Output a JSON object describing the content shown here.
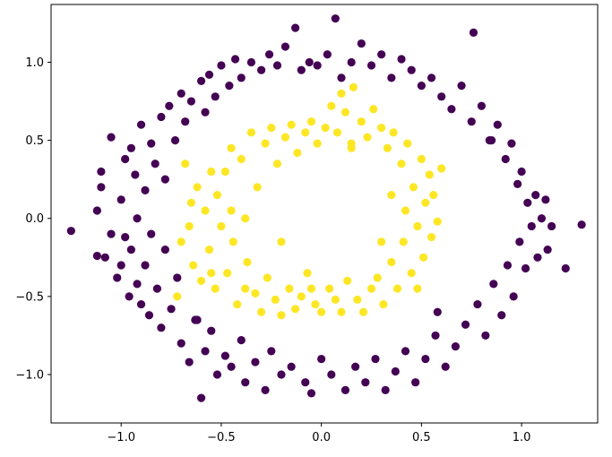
{
  "chart_data": {
    "type": "scatter",
    "title": "",
    "xlabel": "",
    "ylabel": "",
    "xlim": [
      -1.35,
      1.38
    ],
    "ylim": [
      -1.31,
      1.37
    ],
    "xticks": [
      -1.0,
      -0.5,
      0.0,
      0.5,
      1.0
    ],
    "xtick_labels": [
      "−1.0",
      "−0.5",
      "0.0",
      "0.5",
      "1.0"
    ],
    "yticks": [
      -1.0,
      -0.5,
      0.0,
      0.5,
      1.0
    ],
    "ytick_labels": [
      "−1.0",
      "−0.5",
      "0.0",
      "0.5",
      "1.0"
    ],
    "grid": false,
    "legend": "none",
    "series": [
      {
        "color": "#440154",
        "points": [
          [
            -1.25,
            -0.08
          ],
          [
            -1.1,
            0.3
          ],
          [
            -1.1,
            0.2
          ],
          [
            -1.12,
            0.05
          ],
          [
            -1.12,
            -0.24
          ],
          [
            -1.08,
            -0.25
          ],
          [
            -1.05,
            0.52
          ],
          [
            -1.05,
            -0.1
          ],
          [
            -1.02,
            -0.38
          ],
          [
            -1.0,
            0.12
          ],
          [
            -1.0,
            -0.3
          ],
          [
            -0.98,
            0.38
          ],
          [
            -0.98,
            -0.12
          ],
          [
            -0.96,
            -0.5
          ],
          [
            -0.95,
            0.45
          ],
          [
            -0.95,
            -0.2
          ],
          [
            -0.93,
            0.28
          ],
          [
            -0.92,
            -0.42
          ],
          [
            -0.92,
            0.0
          ],
          [
            -0.9,
            0.6
          ],
          [
            -0.9,
            -0.55
          ],
          [
            -0.88,
            0.18
          ],
          [
            -0.88,
            -0.3
          ],
          [
            -0.86,
            -0.62
          ],
          [
            -0.85,
            0.48
          ],
          [
            -0.85,
            -0.1
          ],
          [
            -0.83,
            0.35
          ],
          [
            -0.82,
            -0.45
          ],
          [
            -0.8,
            0.65
          ],
          [
            -0.8,
            -0.7
          ],
          [
            -0.78,
            0.25
          ],
          [
            -0.78,
            -0.2
          ],
          [
            -0.76,
            0.72
          ],
          [
            -0.75,
            -0.58
          ],
          [
            -0.73,
            0.5
          ],
          [
            -0.72,
            -0.38
          ],
          [
            -0.7,
            0.8
          ],
          [
            -0.7,
            -0.8
          ],
          [
            -0.68,
            0.62
          ],
          [
            -0.66,
            -0.92
          ],
          [
            -0.65,
            0.75
          ],
          [
            -0.63,
            -0.65
          ],
          [
            -0.6,
            0.88
          ],
          [
            -0.6,
            -1.15
          ],
          [
            -0.58,
            -0.85
          ],
          [
            -0.56,
            0.92
          ],
          [
            -0.55,
            -0.72
          ],
          [
            -0.53,
            0.78
          ],
          [
            -0.52,
            -1.0
          ],
          [
            -0.5,
            0.98
          ],
          [
            -0.48,
            -0.88
          ],
          [
            -0.46,
            0.85
          ],
          [
            -0.45,
            -0.95
          ],
          [
            -0.43,
            1.02
          ],
          [
            -0.4,
            -0.78
          ],
          [
            -0.4,
            0.9
          ],
          [
            -0.38,
            -1.05
          ],
          [
            -0.35,
            1.0
          ],
          [
            -0.33,
            -0.92
          ],
          [
            -0.3,
            0.95
          ],
          [
            -0.28,
            -1.1
          ],
          [
            -0.26,
            1.05
          ],
          [
            -0.25,
            -0.85
          ],
          [
            -0.22,
            0.98
          ],
          [
            -0.2,
            -1.0
          ],
          [
            -0.18,
            1.1
          ],
          [
            -0.15,
            -0.95
          ],
          [
            -0.13,
            1.22
          ],
          [
            -0.1,
            0.95
          ],
          [
            -0.08,
            -1.05
          ],
          [
            -0.06,
            1.0
          ],
          [
            -0.05,
            -1.12
          ],
          [
            -0.02,
            0.98
          ],
          [
            0.0,
            -0.9
          ],
          [
            0.03,
            1.05
          ],
          [
            0.05,
            -1.0
          ],
          [
            0.07,
            1.28
          ],
          [
            0.1,
            0.9
          ],
          [
            0.12,
            -1.1
          ],
          [
            0.15,
            1.0
          ],
          [
            0.17,
            -0.95
          ],
          [
            0.2,
            1.12
          ],
          [
            0.22,
            -1.05
          ],
          [
            0.25,
            0.98
          ],
          [
            0.27,
            -0.9
          ],
          [
            0.3,
            1.05
          ],
          [
            0.32,
            -1.1
          ],
          [
            0.35,
            0.9
          ],
          [
            0.37,
            -0.98
          ],
          [
            0.4,
            1.02
          ],
          [
            0.42,
            -0.85
          ],
          [
            0.45,
            0.95
          ],
          [
            0.47,
            -1.05
          ],
          [
            0.5,
            0.85
          ],
          [
            0.52,
            -0.9
          ],
          [
            0.55,
            0.9
          ],
          [
            0.57,
            -0.75
          ],
          [
            0.6,
            0.78
          ],
          [
            0.62,
            -0.95
          ],
          [
            0.65,
            0.7
          ],
          [
            0.67,
            -0.82
          ],
          [
            0.7,
            0.85
          ],
          [
            0.72,
            -0.68
          ],
          [
            0.75,
            0.62
          ],
          [
            0.76,
            1.19
          ],
          [
            0.78,
            -0.55
          ],
          [
            0.8,
            0.72
          ],
          [
            0.82,
            -0.75
          ],
          [
            0.85,
            0.5
          ],
          [
            0.86,
            -0.42
          ],
          [
            0.88,
            0.6
          ],
          [
            0.9,
            -0.62
          ],
          [
            0.92,
            0.38
          ],
          [
            0.93,
            -0.3
          ],
          [
            0.95,
            0.48
          ],
          [
            0.96,
            -0.5
          ],
          [
            0.98,
            0.22
          ],
          [
            0.99,
            -0.15
          ],
          [
            1.0,
            0.3
          ],
          [
            1.02,
            -0.32
          ],
          [
            1.03,
            0.1
          ],
          [
            1.05,
            -0.05
          ],
          [
            1.07,
            0.15
          ],
          [
            1.08,
            -0.25
          ],
          [
            1.1,
            0.0
          ],
          [
            1.12,
            0.12
          ],
          [
            1.13,
            -0.2
          ],
          [
            1.15,
            -0.05
          ],
          [
            1.22,
            -0.32
          ],
          [
            1.3,
            -0.04
          ],
          [
            0.84,
            0.5
          ],
          [
            -0.62,
            -0.65
          ],
          [
            0.58,
            -0.6
          ],
          [
            -0.58,
            0.68
          ]
        ]
      },
      {
        "color": "#fde725",
        "points": [
          [
            -0.72,
            -0.5
          ],
          [
            -0.7,
            -0.15
          ],
          [
            -0.68,
            0.35
          ],
          [
            -0.66,
            -0.05
          ],
          [
            -0.65,
            0.1
          ],
          [
            -0.64,
            -0.3
          ],
          [
            -0.62,
            0.2
          ],
          [
            -0.6,
            -0.4
          ],
          [
            -0.58,
            0.05
          ],
          [
            -0.56,
            -0.2
          ],
          [
            -0.55,
            0.3
          ],
          [
            -0.53,
            -0.45
          ],
          [
            -0.52,
            0.15
          ],
          [
            -0.5,
            -0.05
          ],
          [
            -0.48,
            0.3
          ],
          [
            -0.47,
            -0.35
          ],
          [
            -0.45,
            0.45
          ],
          [
            -0.44,
            -0.15
          ],
          [
            -0.42,
            -0.55
          ],
          [
            -0.4,
            0.38
          ],
          [
            -0.38,
            0.0
          ],
          [
            -0.37,
            -0.28
          ],
          [
            -0.35,
            0.55
          ],
          [
            -0.33,
            -0.48
          ],
          [
            -0.32,
            0.2
          ],
          [
            -0.3,
            -0.6
          ],
          [
            -0.28,
            0.48
          ],
          [
            -0.27,
            -0.38
          ],
          [
            -0.25,
            0.58
          ],
          [
            -0.23,
            -0.52
          ],
          [
            -0.22,
            0.35
          ],
          [
            -0.2,
            -0.62
          ],
          [
            -0.18,
            0.52
          ],
          [
            -0.16,
            -0.45
          ],
          [
            -0.15,
            0.6
          ],
          [
            -0.13,
            -0.58
          ],
          [
            -0.12,
            0.42
          ],
          [
            -0.1,
            -0.5
          ],
          [
            -0.08,
            0.55
          ],
          [
            -0.07,
            -0.35
          ],
          [
            -0.05,
            0.62
          ],
          [
            -0.03,
            -0.55
          ],
          [
            -0.02,
            0.48
          ],
          [
            0.0,
            -0.6
          ],
          [
            0.02,
            0.58
          ],
          [
            0.04,
            -0.45
          ],
          [
            0.05,
            0.72
          ],
          [
            0.07,
            -0.52
          ],
          [
            0.08,
            0.55
          ],
          [
            0.1,
            -0.6
          ],
          [
            0.12,
            0.68
          ],
          [
            0.13,
            -0.4
          ],
          [
            0.15,
            0.48
          ],
          [
            0.16,
            0.84
          ],
          [
            0.18,
            -0.52
          ],
          [
            0.2,
            0.62
          ],
          [
            0.21,
            -0.6
          ],
          [
            0.23,
            0.52
          ],
          [
            0.25,
            -0.45
          ],
          [
            0.26,
            0.7
          ],
          [
            0.28,
            -0.38
          ],
          [
            0.3,
            0.58
          ],
          [
            0.31,
            -0.55
          ],
          [
            0.33,
            0.45
          ],
          [
            0.35,
            -0.28
          ],
          [
            0.36,
            0.55
          ],
          [
            0.38,
            -0.45
          ],
          [
            0.4,
            0.35
          ],
          [
            0.41,
            -0.15
          ],
          [
            0.43,
            0.48
          ],
          [
            0.45,
            -0.35
          ],
          [
            0.46,
            0.2
          ],
          [
            0.48,
            -0.05
          ],
          [
            0.5,
            0.38
          ],
          [
            0.51,
            -0.25
          ],
          [
            0.52,
            0.1
          ],
          [
            0.54,
            0.28
          ],
          [
            0.55,
            -0.12
          ],
          [
            0.56,
            0.15
          ],
          [
            0.58,
            -0.02
          ],
          [
            0.6,
            0.32
          ],
          [
            -0.2,
            -0.15
          ],
          [
            0.42,
            0.05
          ],
          [
            0.35,
            0.15
          ],
          [
            0.3,
            -0.15
          ],
          [
            -0.45,
            0.05
          ],
          [
            -0.55,
            -0.35
          ],
          [
            0.15,
            0.45
          ],
          [
            -0.05,
            -0.45
          ],
          [
            0.48,
            -0.45
          ],
          [
            -0.38,
            -0.45
          ],
          [
            0.1,
            0.8
          ]
        ]
      }
    ]
  }
}
